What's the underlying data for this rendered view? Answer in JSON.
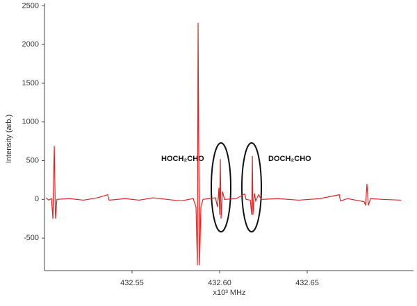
{
  "chart_data": {
    "type": "line",
    "x_label": "x10³ MHz",
    "y_label": "Intensity (arb.)",
    "annotations": [
      "HOCH₂CHO",
      "DOCH₂CHO"
    ],
    "color": "#e02424",
    "xlim": [
      432.5,
      432.7107
    ],
    "xticks": [
      432.55,
      {
        "value": 432.6,
        "label": "432.60"
      },
      432.65
    ],
    "ylim": [
      -920,
      2530
    ],
    "yticks": [
      -500,
      0,
      500,
      1000,
      1500,
      2000,
      2500
    ],
    "grid": false,
    "x": [
      432.5008,
      432.5024,
      432.504,
      432.5048,
      432.5052,
      432.5056,
      432.506,
      432.5063,
      432.5071,
      432.5143,
      432.5222,
      432.5302,
      432.5361,
      432.5369,
      432.546,
      432.554,
      432.5619,
      432.5698,
      432.5778,
      432.5849,
      432.5865,
      432.5873,
      432.5877,
      432.5881,
      432.5885,
      432.5893,
      432.5905,
      432.5976,
      432.5988,
      432.5996,
      432.6,
      432.6004,
      432.6008,
      432.6016,
      432.6028,
      432.6095,
      432.6143,
      432.6151,
      432.6175,
      432.6183,
      432.6187,
      432.619,
      432.6198,
      432.6206,
      432.6222,
      432.6238,
      432.6333,
      432.6452,
      432.6571,
      432.6683,
      432.669,
      432.673,
      432.6825,
      432.6833,
      432.6841,
      432.6849,
      432.6861,
      432.6929,
      432.7036
    ],
    "values": [
      20,
      -10,
      10,
      -250,
      300,
      690,
      100,
      -250,
      0,
      10,
      -10,
      20,
      60,
      -10,
      10,
      -10,
      20,
      0,
      -20,
      10,
      -100,
      -850,
      2280,
      500,
      -850,
      -100,
      0,
      20,
      -100,
      150,
      -200,
      520,
      -250,
      100,
      0,
      10,
      70,
      0,
      -10,
      -200,
      560,
      -200,
      80,
      -20,
      60,
      0,
      10,
      -10,
      10,
      60,
      -20,
      10,
      -30,
      -80,
      200,
      -80,
      10,
      0,
      -10
    ]
  }
}
